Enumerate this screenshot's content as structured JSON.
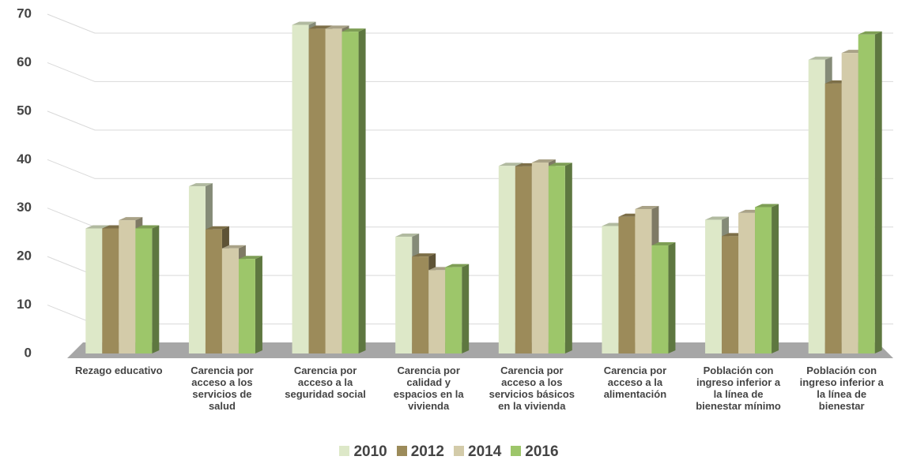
{
  "chart_data": {
    "type": "bar",
    "categories": [
      "Rezago educativo",
      "Carencia por acceso a los servicios de salud",
      "Carencia por acceso a la seguridad social",
      "Carencia por calidad y espacios en la vivienda",
      "Carencia por acceso a los servicios básicos en la vivienda",
      "Carencia por acceso a la alimentación",
      "Población con ingreso inferior a la línea de bienestar mínimo",
      "Población con ingreso inferior a la línea de bienestar"
    ],
    "series": [
      {
        "name": "2010",
        "color": "#dde8c8",
        "values": [
          25.8,
          34.5,
          67.8,
          24.1,
          38.7,
          26.3,
          27.6,
          60.6
        ]
      },
      {
        "name": "2012",
        "color": "#9c8b5a",
        "values": [
          25.8,
          25.6,
          67.0,
          20.0,
          38.6,
          28.2,
          24.2,
          55.7
        ]
      },
      {
        "name": "2014",
        "color": "#d3cba9",
        "values": [
          27.5,
          21.7,
          67.0,
          17.2,
          39.4,
          29.8,
          29.0,
          62.0
        ]
      },
      {
        "name": "2016",
        "color": "#9dc66a",
        "values": [
          25.8,
          19.5,
          66.4,
          17.8,
          38.7,
          22.3,
          30.2,
          65.8
        ]
      }
    ],
    "ylim": [
      0,
      70
    ],
    "yticks": [
      0,
      10,
      20,
      30,
      40,
      50,
      60,
      70
    ],
    "grid": true
  }
}
